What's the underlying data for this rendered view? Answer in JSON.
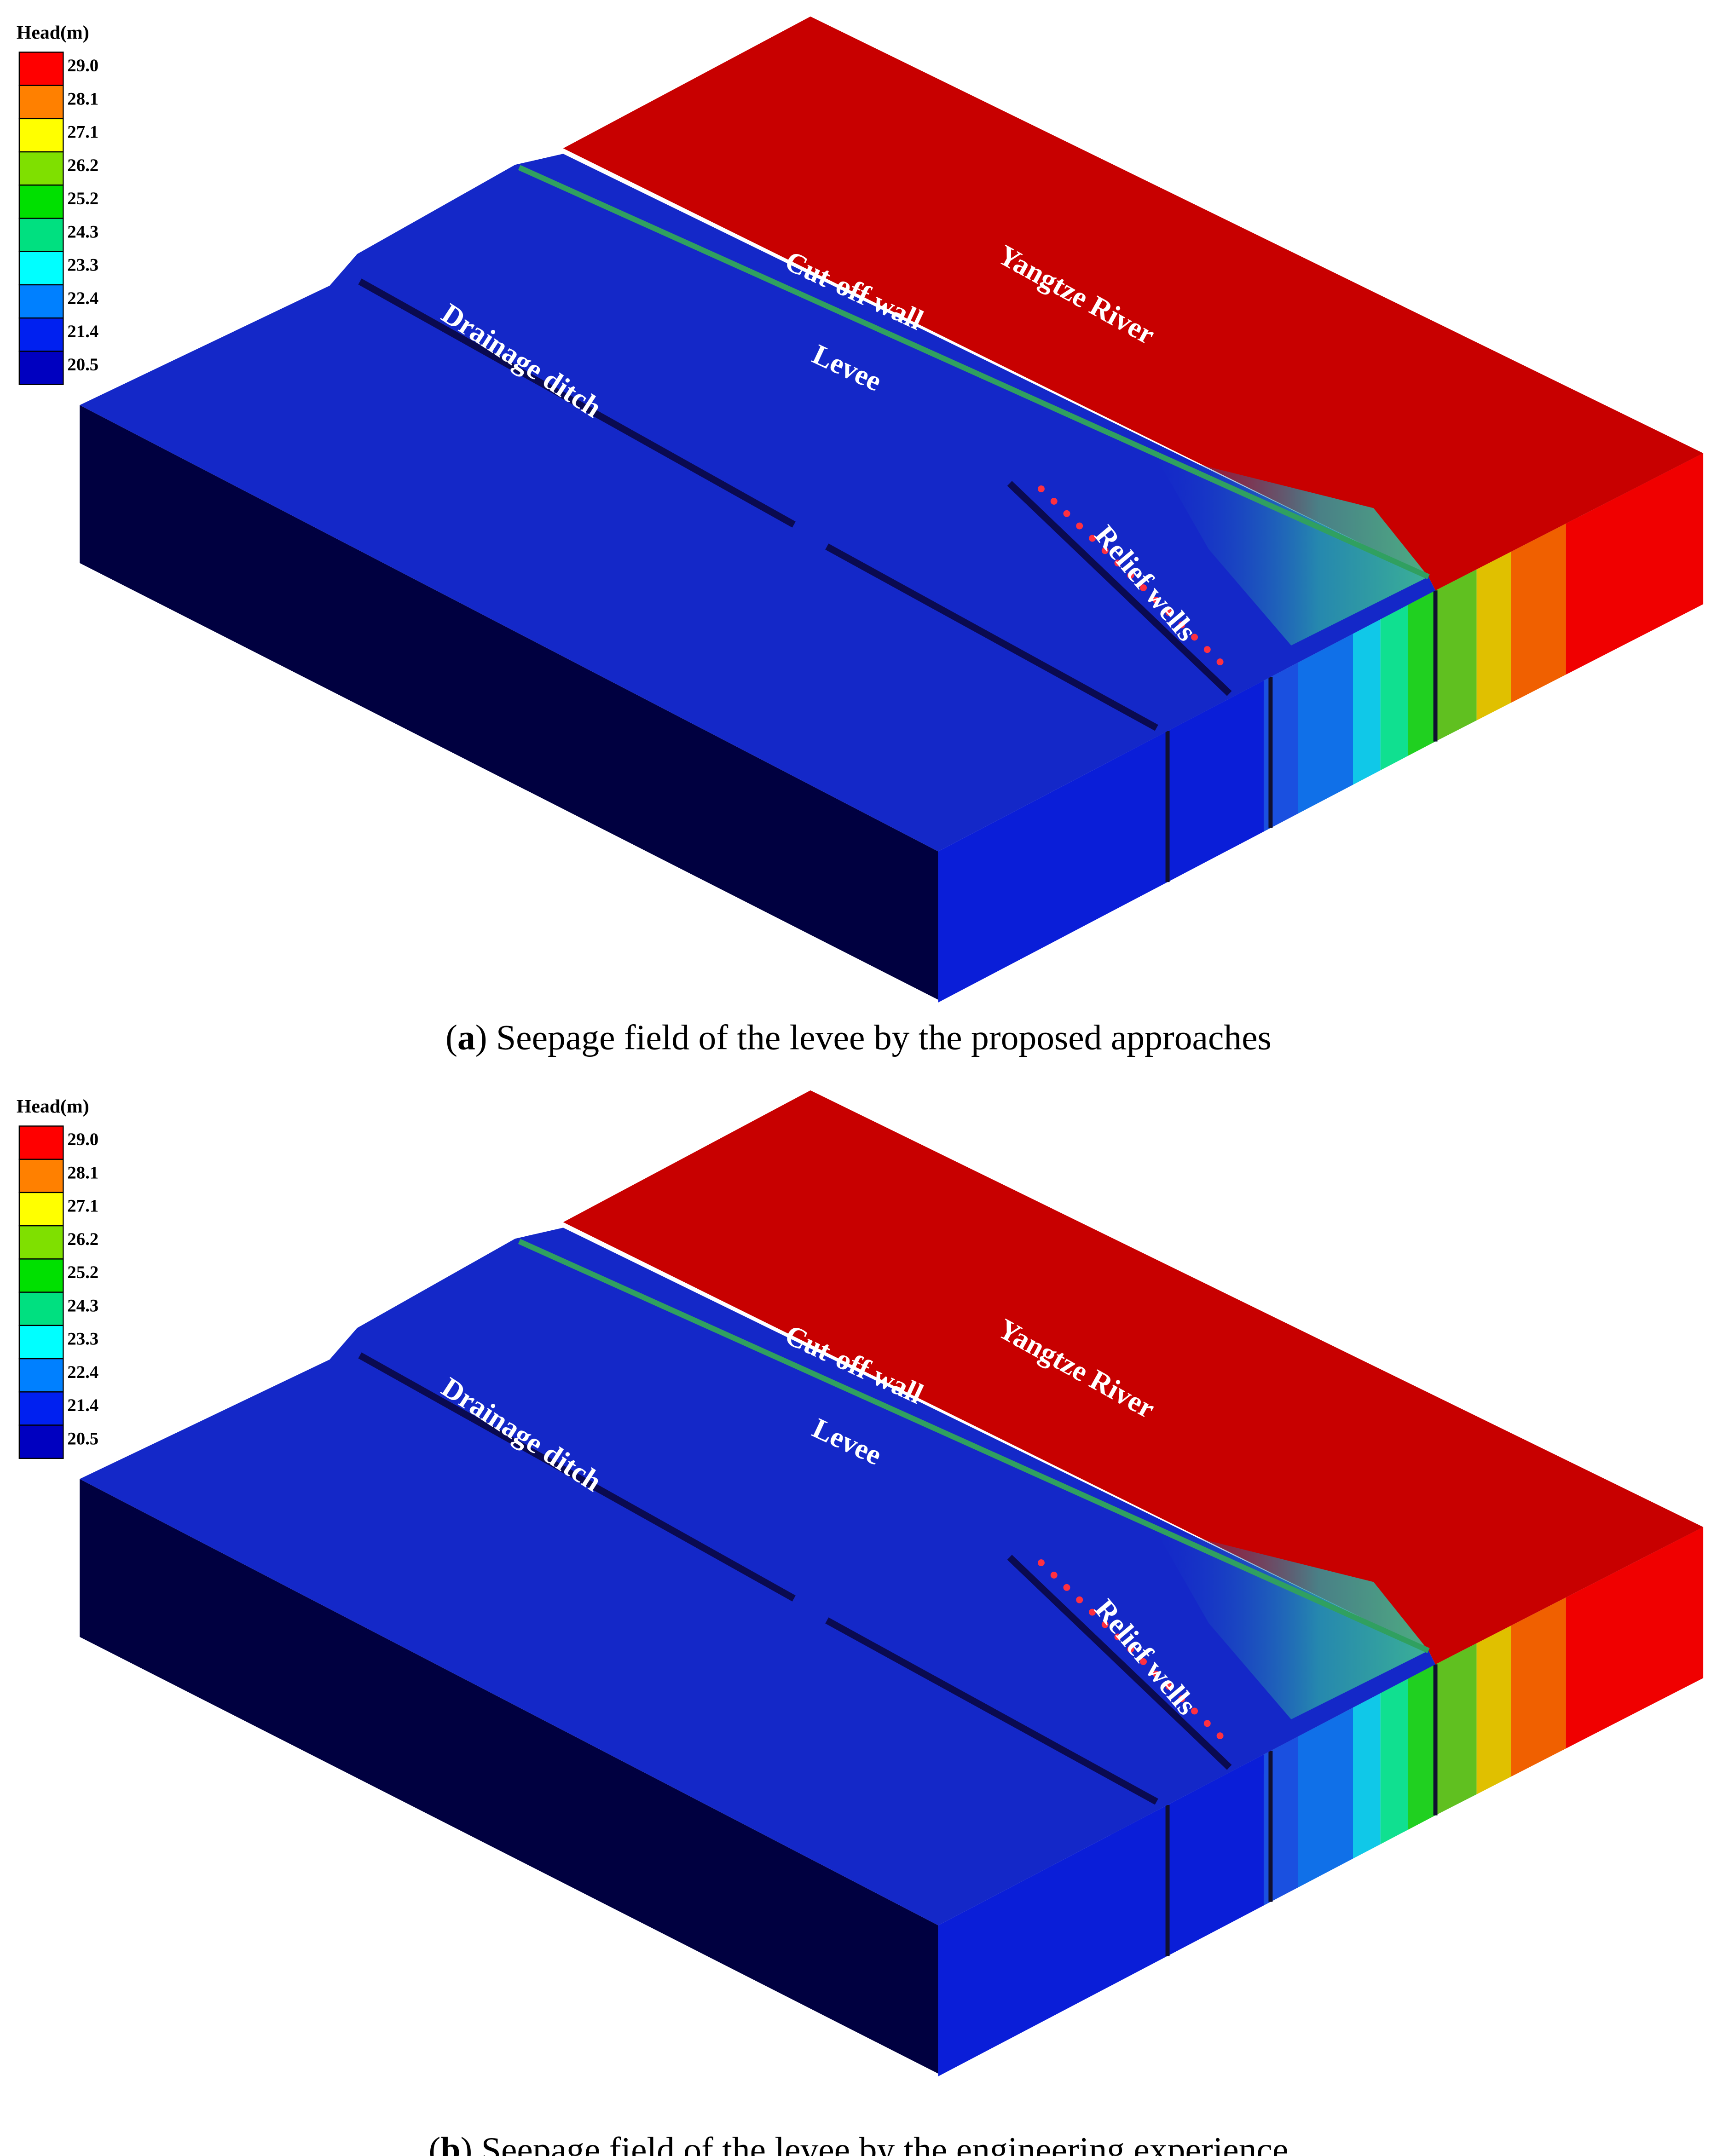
{
  "panels": [
    {
      "legend": {
        "title": "Head(m)",
        "levels": [
          "29.0",
          "28.1",
          "27.1",
          "26.2",
          "25.2",
          "24.3",
          "23.3",
          "22.4",
          "21.4",
          "20.5"
        ],
        "colors": [
          "#ff0000",
          "#ff8000",
          "#ffff00",
          "#7fe000",
          "#00e000",
          "#00e080",
          "#00ffff",
          "#0080ff",
          "#0020f0",
          "#0000c0"
        ]
      },
      "labels": {
        "river": "Yangtze River",
        "wall": "Cut-off  wall",
        "levee": "Levee",
        "ditch": "Drainage ditch",
        "wells": "Relief wells"
      },
      "caption": {
        "open": "(",
        "letter": "a",
        "text": ") Seepage field of the levee by the proposed approaches"
      }
    },
    {
      "legend": {
        "title": "Head(m)",
        "levels": [
          "29.0",
          "28.1",
          "27.1",
          "26.2",
          "25.2",
          "24.3",
          "23.3",
          "22.4",
          "21.4",
          "20.5"
        ],
        "colors": [
          "#ff0000",
          "#ff8000",
          "#ffff00",
          "#7fe000",
          "#00e000",
          "#00e080",
          "#00ffff",
          "#0080ff",
          "#0020f0",
          "#0000c0"
        ]
      },
      "labels": {
        "river": "Yangtze River",
        "wall": "Cut-off  wall",
        "levee": "Levee",
        "ditch": "Drainage ditch",
        "wells": "Relief wells"
      },
      "caption": {
        "open": "(",
        "letter": "b",
        "text": ") Seepage field of the levee by the engineering experience"
      }
    }
  ]
}
